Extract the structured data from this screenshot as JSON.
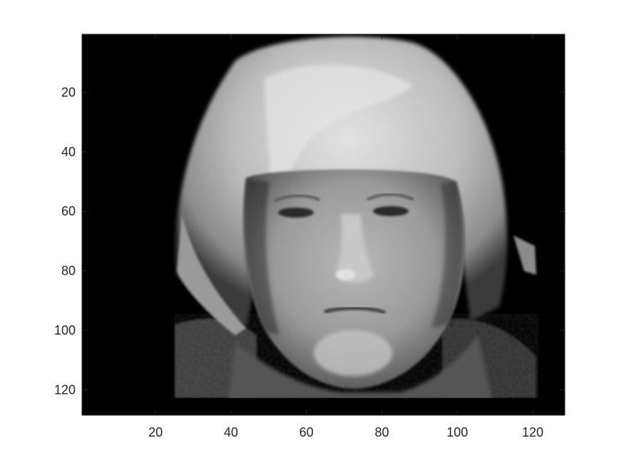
{
  "chart_data": {
    "type": "heatmap",
    "colormap": "gray",
    "title": "",
    "xlabel": "",
    "ylabel": "",
    "image_size": [
      128,
      128
    ],
    "xlim": [
      0.5,
      128.5
    ],
    "ylim": [
      0.5,
      128.5
    ],
    "y_direction": "reverse",
    "xticks": [
      20,
      40,
      60,
      80,
      100,
      120
    ],
    "yticks": [
      20,
      40,
      60,
      80,
      100,
      120
    ],
    "xtick_labels": [
      "20",
      "40",
      "60",
      "80",
      "100",
      "120"
    ],
    "ytick_labels": [
      "20",
      "40",
      "60",
      "80",
      "100",
      "120"
    ],
    "grid": false,
    "content": "grayscale portrait of a face on a black background"
  },
  "colors": {
    "background": "#ffffff",
    "axes_color": "#262626",
    "image_background": "#000000"
  }
}
